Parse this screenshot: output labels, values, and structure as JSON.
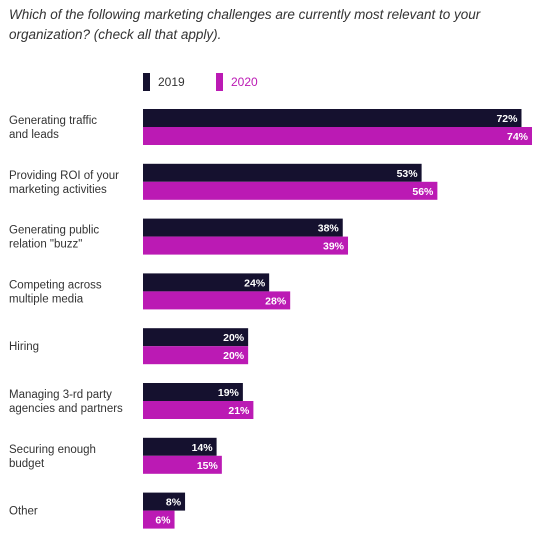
{
  "title": "Which of the following marketing challenges are currently most relevant to your organization? (check all that apply).",
  "chart_data": {
    "type": "bar",
    "orientation": "horizontal",
    "categories": [
      "Generating traffic and leads",
      "Providing ROI of your marketing activities",
      "Generating public relation \"buzz\"",
      "Competing across multiple media",
      "Hiring",
      "Managing 3-rd party agencies and partners",
      "Securing enough budget",
      "Other"
    ],
    "category_lines": [
      [
        "Generating traffic",
        "and leads"
      ],
      [
        "Providing ROI of your",
        "marketing activities"
      ],
      [
        "Generating public",
        "relation \"buzz\""
      ],
      [
        "Competing across",
        "multiple media"
      ],
      [
        "Hiring"
      ],
      [
        "Managing 3-rd party",
        "agencies and partners"
      ],
      [
        "Securing enough",
        "budget"
      ],
      [
        "Other"
      ]
    ],
    "series": [
      {
        "name": "2019",
        "color": "#15112f",
        "values": [
          72,
          53,
          38,
          24,
          20,
          19,
          14,
          8
        ]
      },
      {
        "name": "2020",
        "color": "#bb1ab4",
        "values": [
          74,
          56,
          39,
          28,
          20,
          21,
          15,
          6
        ]
      }
    ],
    "value_suffix": "%",
    "legend_position": "top",
    "grid": false
  }
}
